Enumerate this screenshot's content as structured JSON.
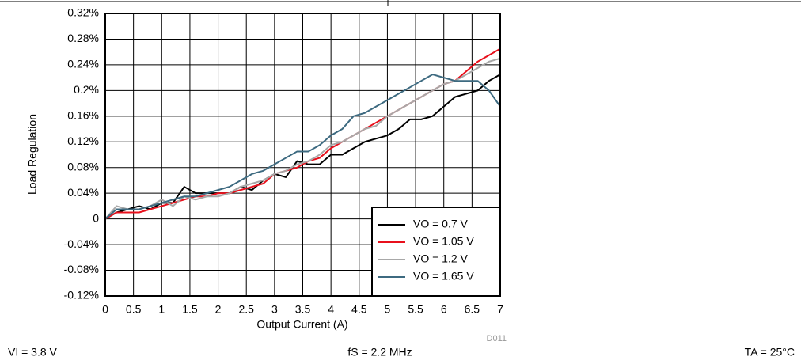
{
  "chart_data": {
    "type": "line",
    "xlabel": "Output Current (A)",
    "ylabel": "Load Regulation",
    "x": [
      0,
      0.2,
      0.4,
      0.6,
      0.8,
      1.0,
      1.2,
      1.4,
      1.6,
      1.8,
      2.0,
      2.2,
      2.4,
      2.6,
      2.8,
      3.0,
      3.2,
      3.4,
      3.6,
      3.8,
      4.0,
      4.2,
      4.4,
      4.6,
      4.8,
      5.0,
      5.2,
      5.4,
      5.6,
      5.8,
      6.0,
      6.2,
      6.4,
      6.6,
      6.8,
      7.0
    ],
    "series": [
      {
        "name": "VO = 0.7 V",
        "color": "#000000",
        "values": [
          0,
          0.01,
          0.015,
          0.02,
          0.015,
          0.025,
          0.025,
          0.05,
          0.04,
          0.04,
          0.04,
          0.04,
          0.05,
          0.045,
          0.06,
          0.07,
          0.065,
          0.09,
          0.085,
          0.085,
          0.1,
          0.1,
          0.11,
          0.12,
          0.125,
          0.13,
          0.14,
          0.155,
          0.155,
          0.16,
          0.175,
          0.19,
          0.195,
          0.2,
          0.215,
          0.225
        ]
      },
      {
        "name": "VO = 1.05 V",
        "color": "#e8101c",
        "values": [
          0,
          0.01,
          0.01,
          0.01,
          0.015,
          0.02,
          0.025,
          0.03,
          0.035,
          0.035,
          0.04,
          0.04,
          0.045,
          0.05,
          0.055,
          0.07,
          0.075,
          0.08,
          0.09,
          0.095,
          0.11,
          0.12,
          0.13,
          0.14,
          0.15,
          0.16,
          0.17,
          0.18,
          0.19,
          0.2,
          0.21,
          0.215,
          0.23,
          0.245,
          0.255,
          0.265
        ]
      },
      {
        "name": "VO = 1.2 V",
        "color": "#a8a8a8",
        "values": [
          0,
          0.02,
          0.015,
          0.015,
          0.02,
          0.03,
          0.02,
          0.035,
          0.03,
          0.035,
          0.035,
          0.04,
          0.05,
          0.055,
          0.06,
          0.07,
          0.075,
          0.085,
          0.09,
          0.1,
          0.115,
          0.12,
          0.13,
          0.14,
          0.145,
          0.16,
          0.17,
          0.18,
          0.19,
          0.2,
          0.21,
          0.215,
          0.225,
          0.235,
          0.245,
          0.25
        ]
      },
      {
        "name": "VO = 1.65 V",
        "color": "#3d6a80",
        "values": [
          0,
          0.015,
          0.015,
          0.015,
          0.02,
          0.025,
          0.03,
          0.035,
          0.035,
          0.04,
          0.045,
          0.05,
          0.06,
          0.07,
          0.075,
          0.085,
          0.095,
          0.105,
          0.105,
          0.115,
          0.13,
          0.14,
          0.16,
          0.165,
          0.175,
          0.185,
          0.195,
          0.205,
          0.215,
          0.225,
          0.22,
          0.215,
          0.215,
          0.215,
          0.2,
          0.175
        ]
      }
    ],
    "xlim": [
      0,
      7
    ],
    "xticks": [
      0,
      0.5,
      1,
      1.5,
      2,
      2.5,
      3,
      3.5,
      4,
      4.5,
      5,
      5.5,
      6,
      6.5,
      7
    ],
    "ylim": [
      -0.12,
      0.32
    ],
    "yticks": [
      {
        "value": -0.12,
        "label": "-0.12%"
      },
      {
        "value": -0.08,
        "label": "-0.08%"
      },
      {
        "value": -0.04,
        "label": "-0.04%"
      },
      0,
      {
        "value": 0.04,
        "label": "0.04%"
      },
      {
        "value": 0.08,
        "label": "0.08%"
      },
      {
        "value": 0.12,
        "label": "0.12%"
      },
      {
        "value": 0.16,
        "label": "0.16%"
      },
      {
        "value": 0.2,
        "label": "0.2%"
      },
      {
        "value": 0.24,
        "label": "0.24%"
      },
      {
        "value": 0.28,
        "label": "0.28%"
      },
      {
        "value": 0.32,
        "label": "0.32%"
      }
    ],
    "grid": true,
    "legend": "lower right",
    "code": "D011",
    "annotations": [
      "VI = 3.8 V",
      "fS = 2.2 MHz",
      "TA = 25°C"
    ]
  }
}
